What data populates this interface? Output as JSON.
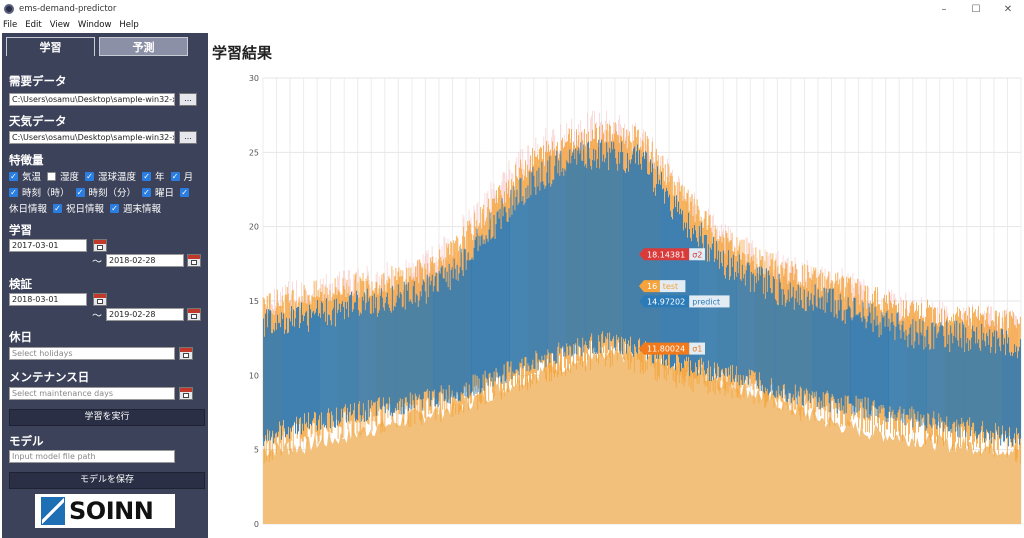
{
  "window": {
    "title": "ems-demand-predictor",
    "controls": [
      "–",
      "☐",
      "✕"
    ]
  },
  "menu": [
    "File",
    "Edit",
    "View",
    "Window",
    "Help"
  ],
  "sidebar": {
    "tabs": {
      "train": "学習",
      "predict": "予測"
    },
    "demand": {
      "title": "需要データ",
      "path": "C:\\Users\\osamu\\Desktop\\sample-win32-x64",
      "browse": "..."
    },
    "weather": {
      "title": "天気データ",
      "path": "C:\\Users\\osamu\\Desktop\\sample-win32-x64",
      "browse": "..."
    },
    "features": {
      "title": "特徴量",
      "items": [
        {
          "label": "気温",
          "checked": true
        },
        {
          "label": "湿度",
          "checked": false
        },
        {
          "label": "湿球温度",
          "checked": true
        },
        {
          "label": "年",
          "checked": true
        },
        {
          "label": "月",
          "checked": true
        },
        {
          "label": "時刻（時）",
          "checked": true
        },
        {
          "label": "時刻（分）",
          "checked": true
        },
        {
          "label": "曜日",
          "checked": true
        },
        {
          "label": "休日情報",
          "checked": true
        },
        {
          "label": "祝日情報",
          "checked": true
        },
        {
          "label": "週末情報",
          "checked": true
        }
      ]
    },
    "train": {
      "title": "学習",
      "start": "2017-03-01",
      "end": "2018-02-28",
      "tilde": "〜"
    },
    "validate": {
      "title": "検証",
      "start": "2018-03-01",
      "end": "2019-02-28",
      "tilde": "〜"
    },
    "holiday": {
      "title": "休日",
      "placeholder": "Select holidays"
    },
    "maintenance": {
      "title": "メンテナンス日",
      "placeholder": "Select maintenance days"
    },
    "run_button": "学習を実行",
    "model": {
      "title": "モデル",
      "placeholder": "Input model file path"
    },
    "save_button": "モデルを保存",
    "logo_text": "SOINN"
  },
  "main": {
    "title": "学習結果"
  },
  "chart_data": {
    "type": "area",
    "ylim": [
      0,
      30
    ],
    "yticks": [
      0,
      5,
      10,
      15,
      20,
      25,
      30
    ],
    "grid": true,
    "colors": {
      "sigma1": "#f2c07a",
      "test": "#f5a33a",
      "predict": "#2b7bb9",
      "sigma2": "#f4a0a0"
    },
    "series_envelope": {
      "x": [
        0,
        0.05,
        0.1,
        0.15,
        0.2,
        0.25,
        0.3,
        0.35,
        0.4,
        0.45,
        0.5,
        0.55,
        0.6,
        0.65,
        0.7,
        0.75,
        0.8,
        0.85,
        0.9,
        0.95,
        1.0
      ],
      "sigma1": [
        5.0,
        5.2,
        5.8,
        6.5,
        7.2,
        7.8,
        8.8,
        10.0,
        10.8,
        11.2,
        11.5,
        10.8,
        9.8,
        8.8,
        7.8,
        6.8,
        6.2,
        5.8,
        5.4,
        5.2,
        5.0
      ],
      "predict_high": [
        14.5,
        15.0,
        15.5,
        16.0,
        16.5,
        18.0,
        21.0,
        24.0,
        25.5,
        26.0,
        25.5,
        22.0,
        19.0,
        17.5,
        16.5,
        16.0,
        15.0,
        14.0,
        13.8,
        13.5,
        13.0
      ],
      "predict_low": [
        5.0,
        6.0,
        6.5,
        7.0,
        7.5,
        8.0,
        9.0,
        10.0,
        11.0,
        11.5,
        11.0,
        10.0,
        9.5,
        9.0,
        8.0,
        7.5,
        7.0,
        6.5,
        6.0,
        5.5,
        5.0
      ],
      "sigma2_high": [
        16.0,
        16.5,
        17.0,
        17.5,
        18.0,
        20.0,
        23.0,
        26.0,
        27.5,
        28.0,
        27.0,
        23.5,
        20.5,
        19.0,
        18.0,
        17.5,
        16.5,
        15.5,
        15.0,
        14.8,
        14.5
      ]
    },
    "tooltips": [
      {
        "value": "18.14381",
        "label": "σ2",
        "y": 18.14381,
        "color": "#d93a3a"
      },
      {
        "value": "16",
        "label": "test",
        "y": 16,
        "color": "#f5a33a"
      },
      {
        "value": "14.97202",
        "label": "predict",
        "y": 14.97202,
        "color": "#2b7bb9"
      },
      {
        "value": "11.80024",
        "label": "σ1",
        "y": 11.80024,
        "color": "#f27a1a"
      }
    ]
  }
}
